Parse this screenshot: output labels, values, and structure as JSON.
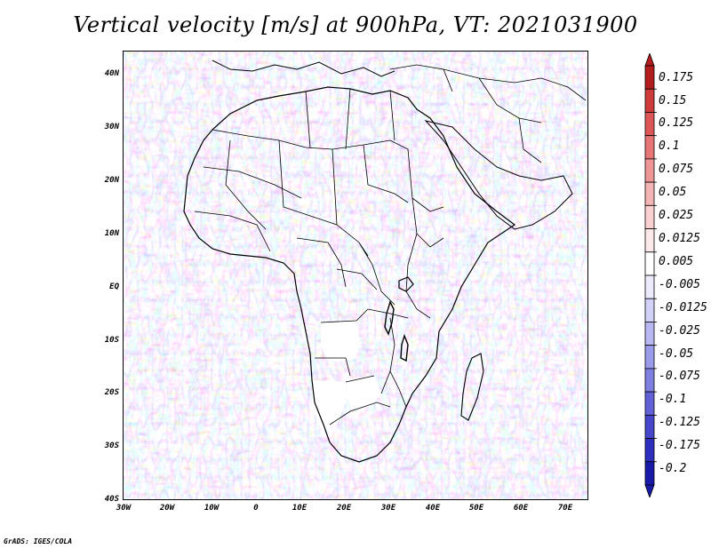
{
  "title": "Vertical velocity [m/s] at 900hPa, VT: 2021031900",
  "footer": "GrADS: IGES/COLA",
  "map": {
    "lat_labels": [
      "40N",
      "30N",
      "20N",
      "10N",
      "EQ",
      "10S",
      "20S",
      "30S",
      "40S"
    ],
    "lon_labels": [
      "30W",
      "20W",
      "10W",
      "0",
      "10E",
      "20E",
      "30E",
      "40E",
      "50E",
      "60E",
      "70E"
    ]
  },
  "colorbar": {
    "labels": [
      "0.175",
      "0.15",
      "0.125",
      "0.1",
      "0.075",
      "0.05",
      "0.025",
      "0.0125",
      "0.005",
      "-0.005",
      "-0.0125",
      "-0.025",
      "-0.05",
      "-0.075",
      "-0.1",
      "-0.125",
      "-0.175",
      "-0.2"
    ],
    "colors": [
      "#b41d1d",
      "#cd3b3b",
      "#dd5656",
      "#e87575",
      "#ef9595",
      "#f5b4b4",
      "#fad1d1",
      "#fde9e9",
      "#ffffff",
      "#ebebfc",
      "#d2d2f8",
      "#b7b7f2",
      "#9b9beb",
      "#7f7fe2",
      "#6262d8",
      "#4646cb",
      "#2e2ebe",
      "#1a1aa8"
    ]
  }
}
